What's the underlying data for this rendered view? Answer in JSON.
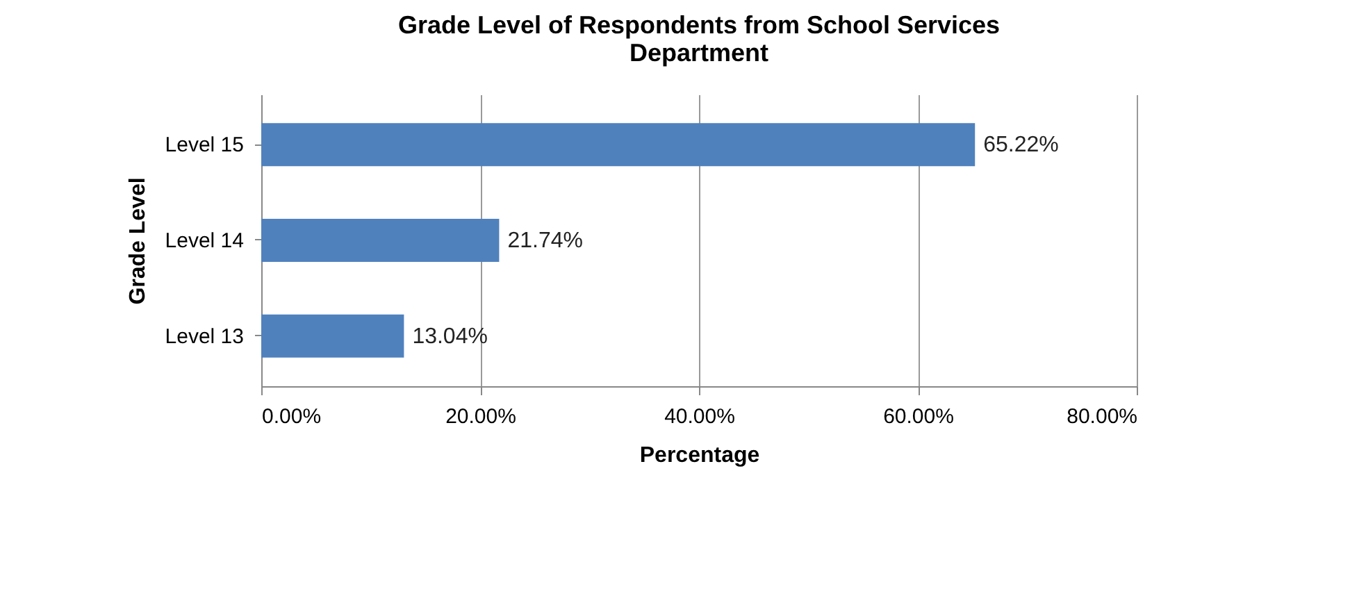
{
  "chart_data": {
    "type": "bar",
    "orientation": "horizontal",
    "title": "Grade Level of Respondents from School Services Department",
    "xlabel": "Percentage",
    "ylabel": "Grade Level",
    "categories": [
      "Level 15",
      "Level 14",
      "Level 13"
    ],
    "values": [
      65.22,
      21.74,
      13.04
    ],
    "color": "#4f81bd",
    "value_labels": [
      "65.22%",
      "21.74%",
      "13.04%"
    ],
    "xlim": [
      0,
      80
    ],
    "xticks": [
      {
        "value": 0,
        "label": "0.00%"
      },
      {
        "value": 20,
        "label": "20.00%"
      },
      {
        "value": 40,
        "label": "40.00%"
      },
      {
        "value": 60,
        "label": "60.00%"
      },
      {
        "value": 80,
        "label": "80.00%"
      }
    ],
    "grid": "x"
  }
}
